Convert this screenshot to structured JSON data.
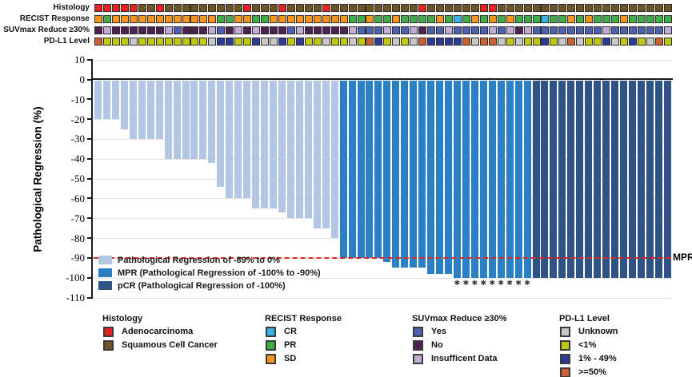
{
  "annotation_tracks": {
    "labels": [
      "Histology",
      "RECIST Response",
      "SUVmax Reduce ≥30%",
      "PD-L1 Level"
    ]
  },
  "chart_data": {
    "type": "bar",
    "title": "",
    "ylabel": "Pathological Regression (%)",
    "ylim": [
      -110,
      10
    ],
    "yticks": [
      10,
      0,
      -10,
      -20,
      -30,
      -40,
      -50,
      -60,
      -70,
      -80,
      -90,
      -100,
      -110
    ],
    "grid": "horizontal-light",
    "reference_line": {
      "y": -90,
      "label": "MPR",
      "style": "dashed-red"
    },
    "asterisk_note": "asterisk markers under MPR bars reaching -100%",
    "in_plot_legend": [
      {
        "label": "Pathological Regression of -89% to 0%",
        "color_key": "bar_pr"
      },
      {
        "label": "MPR (Pathological Regression of -100% to -90%)",
        "color_key": "bar_mpr"
      },
      {
        "label": "pCR (Pathological Regression of -100%)",
        "color_key": "bar_pcr"
      }
    ],
    "patients": [
      {
        "h": "A",
        "r": "SD",
        "s": "N",
        "p": ">=50",
        "v": -20,
        "g": "pr"
      },
      {
        "h": "A",
        "r": "PR",
        "s": "I",
        "p": "<1",
        "v": -20,
        "g": "pr"
      },
      {
        "h": "A",
        "r": "SD",
        "s": "N",
        "p": "<1",
        "v": -20,
        "g": "pr"
      },
      {
        "h": "A",
        "r": "SD",
        "s": "N",
        "p": "<1",
        "v": -25,
        "g": "pr"
      },
      {
        "h": "A",
        "r": "SD",
        "s": "N",
        "p": "U",
        "v": -30,
        "g": "pr"
      },
      {
        "h": "S",
        "r": "SD",
        "s": "N",
        "p": "<1",
        "v": -30,
        "g": "pr"
      },
      {
        "h": "S",
        "r": "SD",
        "s": "N",
        "p": "<1",
        "v": -30,
        "g": "pr"
      },
      {
        "h": "A",
        "r": "SD",
        "s": "N",
        "p": "<1",
        "v": -30,
        "g": "pr"
      },
      {
        "h": "S",
        "r": "SD",
        "s": "I",
        "p": "<1",
        "v": -40,
        "g": "pr"
      },
      {
        "h": "S",
        "r": "SD",
        "s": "Y",
        "p": "<1",
        "v": -40,
        "g": "pr"
      },
      {
        "h": "S",
        "r": "SD",
        "s": "N",
        "p": "<1",
        "v": -40,
        "g": "pr"
      },
      {
        "h": "S",
        "r": "SD",
        "s": "N",
        "p": "<1",
        "v": -40,
        "g": "pr"
      },
      {
        "h": "S",
        "r": "SD",
        "s": "N",
        "p": "<1",
        "v": -40,
        "g": "pr"
      },
      {
        "h": "S",
        "r": "SD",
        "s": "I",
        "p": "U",
        "v": -42,
        "g": "pr"
      },
      {
        "h": "S",
        "r": "PR",
        "s": "Y",
        "p": "1-49",
        "v": -54,
        "g": "pr"
      },
      {
        "h": "S",
        "r": "PR",
        "s": "N",
        "p": "1-49",
        "v": -60,
        "g": "pr"
      },
      {
        "h": "S",
        "r": "SD",
        "s": "I",
        "p": "<1",
        "v": -60,
        "g": "pr"
      },
      {
        "h": "A",
        "r": "SD",
        "s": "N",
        "p": "<1",
        "v": -60,
        "g": "pr"
      },
      {
        "h": "S",
        "r": "PR",
        "s": "I",
        "p": "1-49",
        "v": -65,
        "g": "pr"
      },
      {
        "h": "S",
        "r": "PR",
        "s": "N",
        "p": "U",
        "v": -65,
        "g": "pr"
      },
      {
        "h": "S",
        "r": "SD",
        "s": "N",
        "p": "U",
        "v": -65,
        "g": "pr"
      },
      {
        "h": "A",
        "r": "SD",
        "s": "N",
        "p": "1-49",
        "v": -67,
        "g": "pr"
      },
      {
        "h": "S",
        "r": "SD",
        "s": "Y",
        "p": "<1",
        "v": -70,
        "g": "pr"
      },
      {
        "h": "S",
        "r": "SD",
        "s": "I",
        "p": "1-49",
        "v": -70,
        "g": "pr"
      },
      {
        "h": "S",
        "r": "SD",
        "s": "N",
        "p": "<1",
        "v": -70,
        "g": "pr"
      },
      {
        "h": "S",
        "r": "SD",
        "s": "N",
        "p": "<1",
        "v": -75,
        "g": "pr"
      },
      {
        "h": "A",
        "r": "SD",
        "s": "N",
        "p": "U",
        "v": -75,
        "g": "pr"
      },
      {
        "h": "S",
        "r": "SD",
        "s": "N",
        "p": "<1",
        "v": -80,
        "g": "pr"
      },
      {
        "h": "S",
        "r": "SD",
        "s": "N",
        "p": "<1",
        "v": -90,
        "g": "mpr"
      },
      {
        "h": "S",
        "r": "PR",
        "s": "I",
        "p": "U",
        "v": -90,
        "g": "mpr"
      },
      {
        "h": "S",
        "r": "PR",
        "s": "Y",
        "p": "<1",
        "v": -90,
        "g": "mpr"
      },
      {
        "h": "S",
        "r": "SD",
        "s": "Y",
        "p": ">=50",
        "v": -90,
        "g": "mpr"
      },
      {
        "h": "S",
        "r": "PR",
        "s": "Y",
        "p": "1-49",
        "v": -90,
        "g": "mpr"
      },
      {
        "h": "S",
        "r": "PR",
        "s": "I",
        "p": "<1",
        "v": -92,
        "g": "mpr"
      },
      {
        "h": "S",
        "r": "SD",
        "s": "Y",
        "p": "U",
        "v": -95,
        "g": "mpr"
      },
      {
        "h": "S",
        "r": "PR",
        "s": "Y",
        "p": "<1",
        "v": -95,
        "g": "mpr"
      },
      {
        "h": "S",
        "r": "PR",
        "s": "I",
        "p": "U",
        "v": -95,
        "g": "mpr"
      },
      {
        "h": "A",
        "r": "PR",
        "s": "N",
        "p": ">=50",
        "v": -95,
        "g": "mpr"
      },
      {
        "h": "S",
        "r": "PR",
        "s": "Y",
        "p": "1-49",
        "v": -98,
        "g": "mpr"
      },
      {
        "h": "S",
        "r": "SD",
        "s": "Y",
        "p": "1-49",
        "v": -98,
        "g": "mpr"
      },
      {
        "h": "S",
        "r": "PR",
        "s": "I",
        "p": "1-49",
        "v": -98,
        "g": "mpr"
      },
      {
        "h": "S",
        "r": "CR",
        "s": "Y",
        "p": "1-49",
        "v": -100,
        "g": "mpr",
        "a": true
      },
      {
        "h": "S",
        "r": "PR",
        "s": "Y",
        "p": ">=50",
        "v": -100,
        "g": "mpr",
        "a": true
      },
      {
        "h": "S",
        "r": "SD",
        "s": "Y",
        "p": "U",
        "v": -100,
        "g": "mpr",
        "a": true
      },
      {
        "h": "A",
        "r": "PR",
        "s": "Y",
        "p": ">=50",
        "v": -100,
        "g": "mpr",
        "a": true
      },
      {
        "h": "A",
        "r": "SD",
        "s": "I",
        "p": ">=50",
        "v": -100,
        "g": "mpr",
        "a": true
      },
      {
        "h": "S",
        "r": "PR",
        "s": "Y",
        "p": "U",
        "v": -100,
        "g": "mpr",
        "a": true
      },
      {
        "h": "S",
        "r": "SD",
        "s": "I",
        "p": "<1",
        "v": -100,
        "g": "mpr",
        "a": true
      },
      {
        "h": "S",
        "r": "PR",
        "s": "N",
        "p": "U",
        "v": -100,
        "g": "mpr",
        "a": true
      },
      {
        "h": "S",
        "r": "PR",
        "s": "I",
        "p": "<1",
        "v": -100,
        "g": "mpr",
        "a": true
      },
      {
        "h": "S",
        "r": "PR",
        "s": "Y",
        "p": "<1",
        "v": -100,
        "g": "pcr"
      },
      {
        "h": "S",
        "r": "CR",
        "s": "Y",
        "p": "1-49",
        "v": -100,
        "g": "pcr"
      },
      {
        "h": "S",
        "r": "PR",
        "s": "Y",
        "p": "<1",
        "v": -100,
        "g": "pcr"
      },
      {
        "h": "S",
        "r": "PR",
        "s": "Y",
        "p": "U",
        "v": -100,
        "g": "pcr"
      },
      {
        "h": "S",
        "r": "SD",
        "s": "Y",
        "p": ">=50",
        "v": -100,
        "g": "pcr"
      },
      {
        "h": "S",
        "r": "PR",
        "s": "Y",
        "p": "U",
        "v": -100,
        "g": "pcr"
      },
      {
        "h": "S",
        "r": "SD",
        "s": "Y",
        "p": "<1",
        "v": -100,
        "g": "pcr"
      },
      {
        "h": "S",
        "r": "PR",
        "s": "Y",
        "p": "<1",
        "v": -100,
        "g": "pcr"
      },
      {
        "h": "S",
        "r": "PR",
        "s": "I",
        "p": "1-49",
        "v": -100,
        "g": "pcr"
      },
      {
        "h": "S",
        "r": "PR",
        "s": "Y",
        "p": "U",
        "v": -100,
        "g": "pcr"
      },
      {
        "h": "S",
        "r": "SD",
        "s": "Y",
        "p": "<1",
        "v": -100,
        "g": "pcr"
      },
      {
        "h": "S",
        "r": "PR",
        "s": "Y",
        "p": "1-49",
        "v": -100,
        "g": "pcr"
      },
      {
        "h": "S",
        "r": "PR",
        "s": "Y",
        "p": "<1",
        "v": -100,
        "g": "pcr"
      },
      {
        "h": "S",
        "r": "PR",
        "s": "Y",
        "p": "U",
        "v": -100,
        "g": "pcr"
      },
      {
        "h": "S",
        "r": "PR",
        "s": "Y",
        "p": ">=50",
        "v": -100,
        "g": "pcr"
      },
      {
        "h": "S",
        "r": "PR",
        "s": "I",
        "p": "<1",
        "v": -100,
        "g": "pcr"
      }
    ]
  },
  "colors": {
    "adeno": "#e62320",
    "squamous": "#6e5526",
    "cr": "#35b4e4",
    "pr": "#3fae49",
    "sd": "#f7941e",
    "suv_yes": "#4d61ae",
    "suv_no": "#4d2152",
    "suv_ins": "#c4abd8",
    "pdl1_unknown": "#c9c9c9",
    "pdl1_lt1": "#bfc810",
    "pdl1_mid": "#2c3c95",
    "pdl1_ge50": "#c96233",
    "bar_pr": "#b3c6e4",
    "bar_mpr": "#2b80c4",
    "bar_pcr": "#2e5384",
    "mpr_line": "#e8241c"
  },
  "legends": [
    {
      "title": "Histology",
      "items": [
        {
          "label": "Adenocarcinoma",
          "color_key": "adeno"
        },
        {
          "label": "Squamous Cell Cancer",
          "color_key": "squamous"
        }
      ]
    },
    {
      "title": "RECIST Response",
      "items": [
        {
          "label": "CR",
          "color_key": "cr"
        },
        {
          "label": "PR",
          "color_key": "pr"
        },
        {
          "label": "SD",
          "color_key": "sd"
        }
      ]
    },
    {
      "title": "SUVmax Reduce ≥30%",
      "items": [
        {
          "label": "Yes",
          "color_key": "suv_yes"
        },
        {
          "label": "No",
          "color_key": "suv_no"
        },
        {
          "label": "Insufficent Data",
          "color_key": "suv_ins"
        }
      ]
    },
    {
      "title": "PD-L1 Level",
      "items": [
        {
          "label": "Unknown",
          "color_key": "pdl1_unknown"
        },
        {
          "label": "<1%",
          "color_key": "pdl1_lt1"
        },
        {
          "label": "1% - 49%",
          "color_key": "pdl1_mid"
        },
        {
          "label": ">=50%",
          "color_key": "pdl1_ge50"
        }
      ]
    }
  ]
}
